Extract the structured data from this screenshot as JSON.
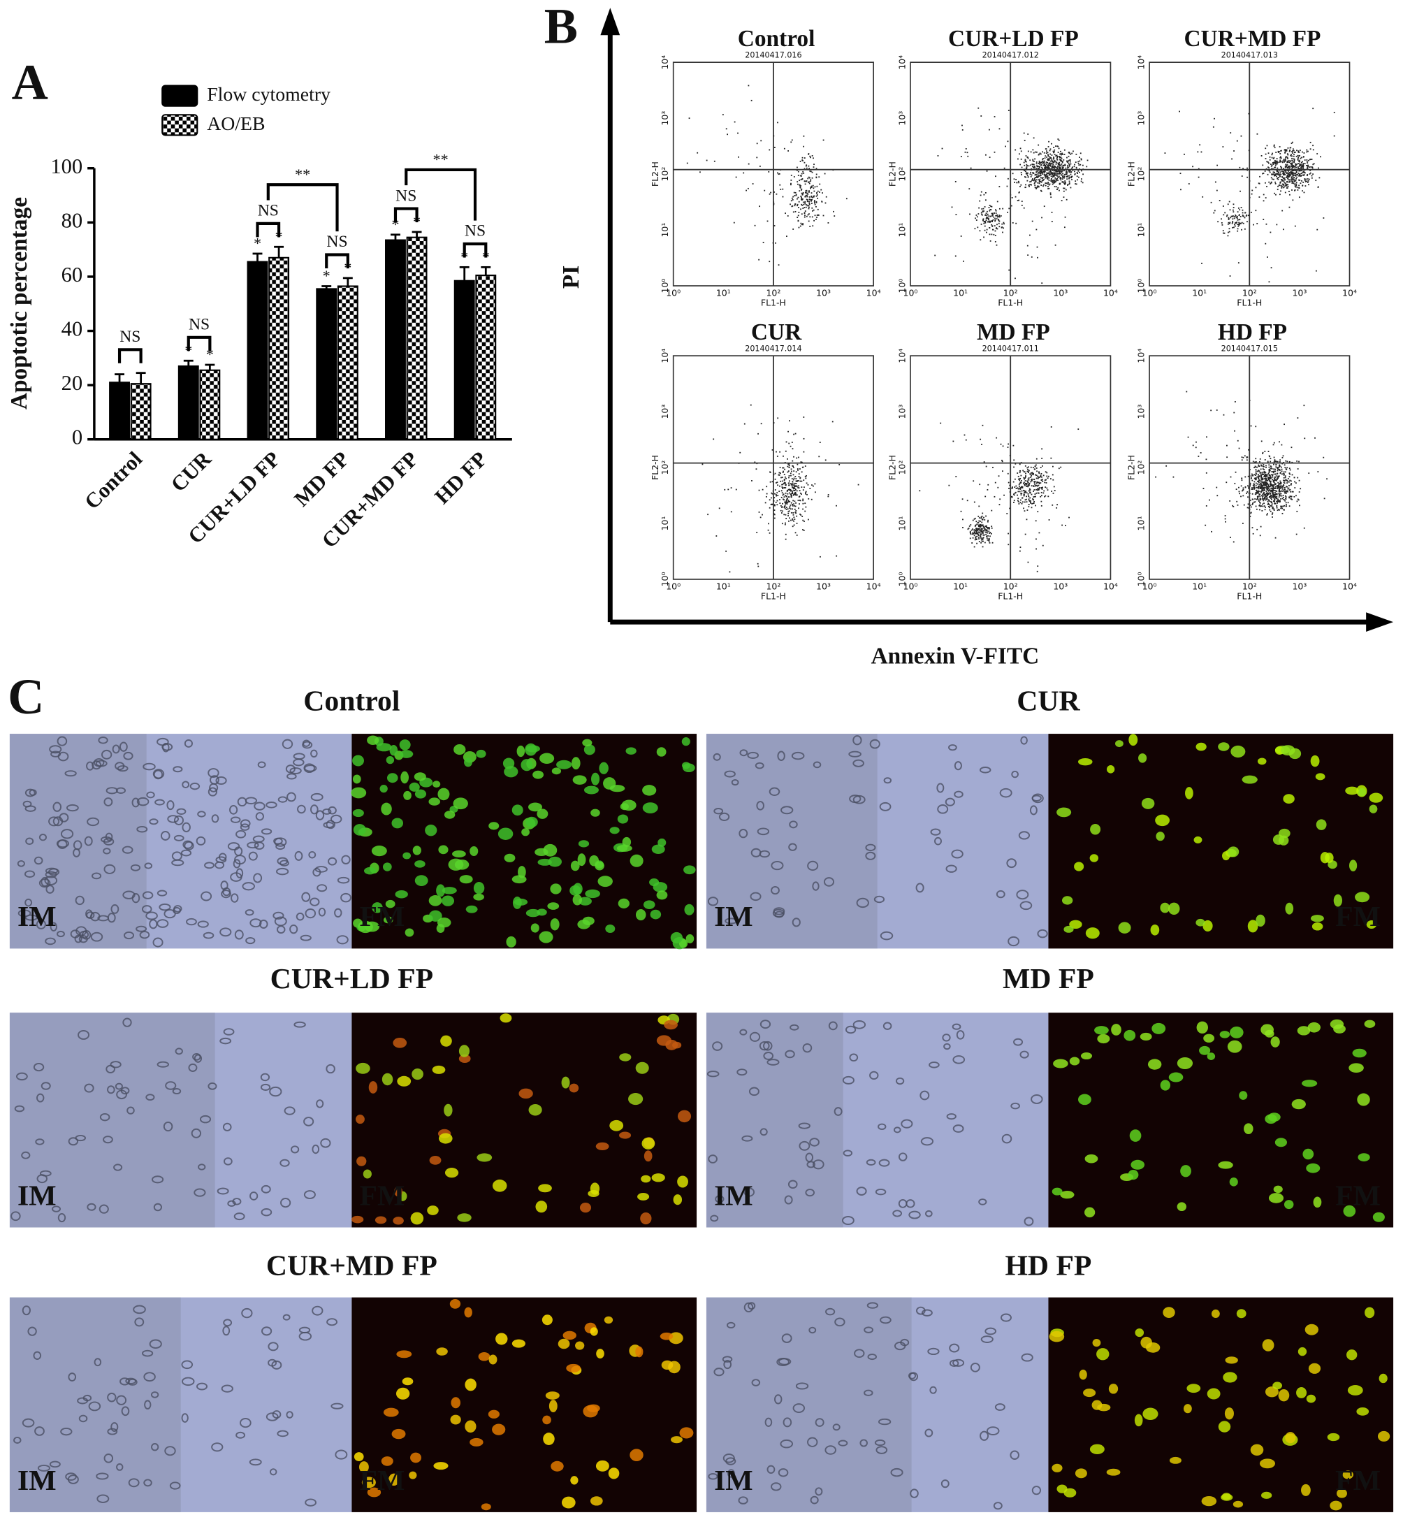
{
  "panel_labels": [
    "A",
    "B",
    "C"
  ],
  "chart_data": {
    "type": "bar",
    "y_label": "Apoptotic percentage",
    "categories": [
      "Control",
      "CUR",
      "CUR+LD FP",
      "MD FP",
      "CUR+MD FP",
      "HD FP"
    ],
    "series": [
      {
        "name": "Flow cytometry",
        "color": "#000000",
        "pattern": "solid",
        "values": [
          21,
          27,
          65.5,
          55.5,
          73.5,
          58.5
        ],
        "errors": [
          3,
          2,
          3,
          1,
          2,
          5
        ],
        "markers": [
          null,
          "*",
          "*",
          "*",
          "*",
          "*"
        ]
      },
      {
        "name": "AO/EB",
        "color": "#000000",
        "pattern": "checker",
        "values": [
          20.5,
          25.5,
          67,
          56.5,
          74.5,
          60.5
        ],
        "errors": [
          4,
          2,
          4,
          3,
          2,
          3
        ],
        "markers": [
          null,
          "*",
          "*",
          "*",
          "*",
          "*"
        ]
      }
    ],
    "ylim": [
      0,
      100
    ],
    "yticks": [
      0,
      20,
      40,
      60,
      80,
      100
    ],
    "annotations": [
      "NS",
      "NS",
      "NS",
      "NS",
      "NS",
      "NS",
      "**",
      "**"
    ]
  },
  "flow_cytometry": {
    "y_label": "PI",
    "x_label": "Annexin V-FITC",
    "x_channel": "FL1-H",
    "y_channel": "FL2-H",
    "decade_labels": [
      "10⁰",
      "10¹",
      "10²",
      "10³",
      "10⁴"
    ],
    "plots": [
      {
        "title": "Control",
        "file": "20140417.016"
      },
      {
        "title": "CUR+LD FP",
        "file": "20140417.012"
      },
      {
        "title": "CUR+MD FP",
        "file": "20140417.013"
      },
      {
        "title": "CUR",
        "file": "20140417.014"
      },
      {
        "title": "MD FP",
        "file": "20140417.011"
      },
      {
        "title": "HD FP",
        "file": "20140417.015"
      }
    ]
  },
  "microscopy": {
    "bright_label": "IM",
    "fluor_label": "FM",
    "panels": [
      {
        "title": "Control"
      },
      {
        "title": "CUR"
      },
      {
        "title": "CUR+LD FP"
      },
      {
        "title": "MD FP"
      },
      {
        "title": "CUR+MD FP"
      },
      {
        "title": "HD FP"
      }
    ]
  }
}
